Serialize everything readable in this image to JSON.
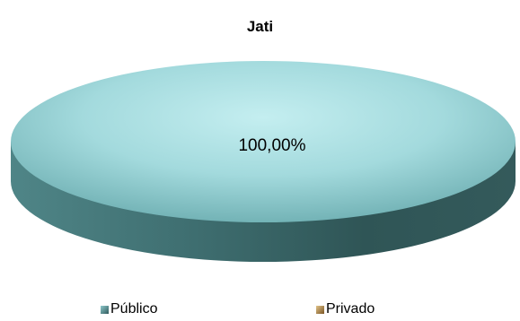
{
  "chart_data": {
    "type": "pie",
    "title": "Jati",
    "slices": [
      {
        "name": "Público",
        "value": 100.0,
        "label": "100,00%",
        "color": "#8fc9cc"
      },
      {
        "name": "Privado",
        "value": 0.0,
        "label": "",
        "color": "#c2955a"
      }
    ],
    "legend_position": "bottom",
    "style": "3d"
  }
}
